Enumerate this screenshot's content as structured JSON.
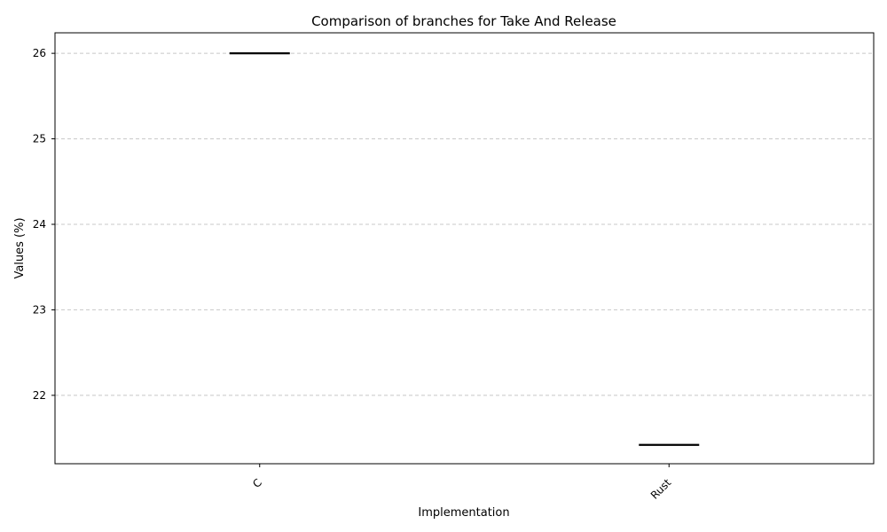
{
  "chart_data": {
    "type": "box",
    "title": "Comparison of branches for Take And Release",
    "xlabel": "Implementation",
    "ylabel": "Values (%)",
    "categories": [
      "C",
      "Rust"
    ],
    "values": [
      26.0,
      21.42
    ],
    "ylim": [
      21.2,
      26.24
    ],
    "yticks": [
      22,
      23,
      24,
      25,
      26
    ],
    "grid": "y-dashed",
    "line_color": "#000000",
    "grid_color": "#c8c8c8"
  }
}
